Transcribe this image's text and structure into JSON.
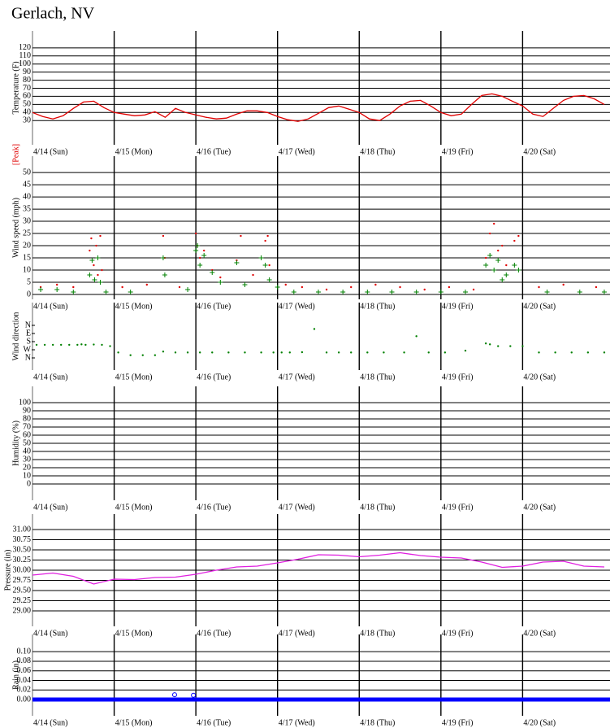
{
  "title": "Gerlach, NV",
  "chart_data": [
    {
      "type": "line",
      "y_label": "Temperature (F)",
      "xlim": [
        0,
        7.07
      ],
      "ylim": [
        0,
        141
      ],
      "xticks": [
        {
          "value": 0,
          "label": "4/14 (Sun)"
        },
        {
          "value": 1,
          "label": "4/15 (Mon)"
        },
        {
          "value": 2,
          "label": "4/16 (Tue)"
        },
        {
          "value": 3,
          "label": "4/17 (Wed)"
        },
        {
          "value": 4,
          "label": "4/18 (Thu)"
        },
        {
          "value": 5,
          "label": "4/19 (Fri)"
        },
        {
          "value": 6,
          "label": "4/20 (Sat)"
        }
      ],
      "yticks": [
        30,
        40,
        50,
        60,
        70,
        80,
        90,
        100,
        110,
        120
      ],
      "series": [
        {
          "color": "#e00000",
          "marker": "line",
          "x": [
            0,
            0.125,
            0.25,
            0.375,
            0.5,
            0.625,
            0.75,
            0.875,
            1,
            1.125,
            1.25,
            1.375,
            1.5,
            1.625,
            1.75,
            1.875,
            2,
            2.125,
            2.25,
            2.375,
            2.5,
            2.625,
            2.75,
            2.875,
            3,
            3.125,
            3.25,
            3.375,
            3.5,
            3.625,
            3.75,
            3.875,
            4,
            4.125,
            4.25,
            4.375,
            4.5,
            4.625,
            4.75,
            4.875,
            5,
            5.125,
            5.25,
            5.375,
            5.5,
            5.625,
            5.75,
            5.875,
            6,
            6.125,
            6.25,
            6.375,
            6.5,
            6.625,
            6.75,
            6.875,
            7
          ],
          "values": [
            40,
            35,
            32,
            36,
            45,
            53,
            54,
            46,
            40,
            38,
            36,
            37,
            41,
            34,
            45,
            40,
            37,
            34,
            32,
            33,
            38,
            42,
            42,
            40,
            35,
            31,
            29,
            32,
            39,
            46,
            48,
            44,
            40,
            32,
            30,
            38,
            48,
            54,
            55,
            48,
            40,
            36,
            38,
            50,
            61,
            63,
            60,
            54,
            48,
            38,
            35,
            45,
            55,
            60,
            61,
            57,
            50
          ]
        }
      ]
    },
    {
      "type": "scatter",
      "y_label": "Wind speed (mph)",
      "xlim": [
        0,
        7.07
      ],
      "ylim": [
        -2,
        56.7
      ],
      "xticks": [
        {
          "value": 0,
          "label": "4/14 (Sun)"
        },
        {
          "value": 1,
          "label": "4/15 (Mon)"
        },
        {
          "value": 2,
          "label": "4/16 (Tue)"
        },
        {
          "value": 3,
          "label": "4/17 (Wed)"
        },
        {
          "value": 4,
          "label": "4/18 (Thu)"
        },
        {
          "value": 5,
          "label": "4/19 (Fri)"
        },
        {
          "value": 6,
          "label": "4/20 (Sat)"
        }
      ],
      "yticks": [
        0,
        5,
        10,
        15,
        20,
        25,
        30,
        35,
        40,
        45,
        50
      ],
      "series": [
        {
          "name": "[Peak]",
          "color": "#e00000",
          "marker": "dot",
          "x": [
            0.1,
            0.3,
            0.5,
            0.7,
            0.72,
            0.75,
            0.78,
            0.8,
            0.83,
            0.85,
            1.1,
            1.4,
            1.6,
            1.62,
            1.8,
            2.0,
            2.02,
            2.05,
            2.1,
            2.2,
            2.3,
            2.5,
            2.55,
            2.7,
            2.85,
            2.88,
            2.9,
            3.1,
            3.3,
            3.6,
            3.9,
            4.2,
            4.5,
            4.8,
            5.1,
            5.4,
            5.55,
            5.6,
            5.65,
            5.7,
            5.75,
            5.8,
            5.9,
            5.95,
            6.2,
            6.5,
            6.9
          ],
          "values": [
            3,
            4,
            3,
            18,
            23,
            12,
            20,
            8,
            24,
            10,
            3,
            4,
            24,
            15,
            3,
            25,
            20,
            15,
            18,
            10,
            7,
            14,
            24,
            8,
            22,
            24,
            12,
            4,
            3,
            2,
            3,
            4,
            3,
            2,
            3,
            2,
            15,
            25,
            29,
            18,
            20,
            12,
            22,
            24,
            3,
            4,
            3
          ]
        },
        {
          "color": "#008000",
          "marker": "plus",
          "x": [
            0.1,
            0.3,
            0.5,
            0.7,
            0.73,
            0.76,
            0.8,
            0.83,
            0.9,
            1.2,
            1.6,
            1.62,
            1.9,
            2.0,
            2.02,
            2.05,
            2.1,
            2.2,
            2.3,
            2.5,
            2.6,
            2.8,
            2.85,
            2.9,
            3.0,
            3.2,
            3.5,
            3.8,
            4.1,
            4.4,
            4.7,
            5.0,
            5.3,
            5.55,
            5.6,
            5.65,
            5.7,
            5.75,
            5.8,
            5.9,
            5.95,
            6.3,
            6.7,
            7.0
          ],
          "values": [
            2,
            2,
            1,
            8,
            14,
            6,
            15,
            5,
            1,
            1,
            15,
            8,
            2,
            18,
            20,
            12,
            16,
            9,
            5,
            13,
            4,
            15,
            12,
            6,
            3,
            1,
            1,
            1,
            1,
            1,
            1,
            1,
            1,
            12,
            16,
            10,
            14,
            6,
            8,
            12,
            10,
            1,
            1,
            1
          ]
        }
      ]
    },
    {
      "type": "scatter",
      "y_label": "Wind direction",
      "xlim": [
        0,
        7.07
      ],
      "ylim": [
        495,
        -252
      ],
      "xticks": [
        {
          "value": 0,
          "label": "4/14 (Sun)"
        },
        {
          "value": 1,
          "label": "4/15 (Mon)"
        },
        {
          "value": 2,
          "label": "4/16 (Tue)"
        },
        {
          "value": 3,
          "label": "4/17 (Wed)"
        },
        {
          "value": 4,
          "label": "4/18 (Thu)"
        },
        {
          "value": 5,
          "label": "4/19 (Fri)"
        },
        {
          "value": 6,
          "label": "4/20 (Sat)"
        }
      ],
      "yticks": [
        {
          "value": 0,
          "label": "N"
        },
        {
          "value": 90,
          "label": "E"
        },
        {
          "value": 180,
          "label": "S"
        },
        {
          "value": 270,
          "label": "W"
        },
        {
          "value": 360,
          "label": "N"
        }
      ],
      "grid": false,
      "series": [
        {
          "color": "#008000",
          "marker": "dot",
          "x": [
            0.05,
            0.15,
            0.25,
            0.35,
            0.45,
            0.55,
            0.6,
            0.65,
            0.75,
            0.85,
            0.95,
            1.05,
            1.2,
            1.35,
            1.5,
            1.6,
            1.75,
            1.9,
            2.05,
            2.2,
            2.4,
            2.6,
            2.8,
            2.95,
            3.05,
            3.15,
            3.3,
            3.45,
            3.6,
            3.75,
            3.9,
            4.1,
            4.3,
            4.55,
            4.7,
            4.85,
            5.05,
            5.3,
            5.55,
            5.6,
            5.7,
            5.85,
            6.0,
            6.2,
            6.4,
            6.6,
            6.8,
            7.0
          ],
          "values": [
            215,
            215,
            215,
            215,
            215,
            215,
            210,
            215,
            212,
            215,
            230,
            300,
            330,
            330,
            330,
            290,
            300,
            300,
            300,
            300,
            300,
            300,
            300,
            300,
            300,
            300,
            297,
            40,
            300,
            300,
            300,
            300,
            300,
            300,
            120,
            300,
            300,
            280,
            200,
            210,
            230,
            230,
            230,
            300,
            300,
            300,
            300,
            300
          ]
        }
      ]
    },
    {
      "type": "scatter",
      "y_label": "Humidity (%)",
      "xlim": [
        0,
        7.07
      ],
      "ylim": [
        -20,
        120
      ],
      "xticks": [
        {
          "value": 0,
          "label": "4/14 (Sun)"
        },
        {
          "value": 1,
          "label": "4/15 (Mon)"
        },
        {
          "value": 2,
          "label": "4/16 (Tue)"
        },
        {
          "value": 3,
          "label": "4/17 (Wed)"
        },
        {
          "value": 4,
          "label": "4/18 (Thu)"
        },
        {
          "value": 5,
          "label": "4/19 (Fri)"
        },
        {
          "value": 6,
          "label": "4/20 (Sat)"
        }
      ],
      "yticks": [
        0,
        10,
        20,
        30,
        40,
        50,
        60,
        70,
        80,
        90,
        100
      ]
    },
    {
      "type": "line",
      "y_label": "Pressure (in)",
      "xlim": [
        0,
        7.07
      ],
      "ylim": [
        28.62,
        31.38
      ],
      "xticks": [
        {
          "value": 0,
          "label": "4/14 (Sun)"
        },
        {
          "value": 1,
          "label": "4/15 (Mon)"
        },
        {
          "value": 2,
          "label": "4/16 (Tue)"
        },
        {
          "value": 3,
          "label": "4/17 (Wed)"
        },
        {
          "value": 4,
          "label": "4/18 (Thu)"
        },
        {
          "value": 5,
          "label": "4/19 (Fri)"
        },
        {
          "value": 6,
          "label": "4/20 (Sat)"
        }
      ],
      "yticks": [
        {
          "value": 29,
          "label": "29.00"
        },
        {
          "value": 29.25,
          "label": "29.25"
        },
        {
          "value": 29.5,
          "label": "29.50"
        },
        {
          "value": 29.75,
          "label": "29.75"
        },
        {
          "value": 30,
          "label": "30.00"
        },
        {
          "value": 30.25,
          "label": "30.25"
        },
        {
          "value": 30.5,
          "label": "30.50"
        },
        {
          "value": 30.75,
          "label": "30.75"
        },
        {
          "value": 31,
          "label": "31.00"
        }
      ],
      "series": [
        {
          "color": "#e020e0",
          "marker": "line",
          "x": [
            0,
            0.25,
            0.5,
            0.75,
            1,
            1.25,
            1.5,
            1.75,
            2,
            2.25,
            2.5,
            2.75,
            3,
            3.25,
            3.5,
            3.75,
            4,
            4.25,
            4.5,
            4.75,
            5,
            5.25,
            5.5,
            5.75,
            6,
            6.25,
            6.5,
            6.75,
            7
          ],
          "values": [
            29.88,
            29.93,
            29.85,
            29.66,
            29.78,
            29.77,
            29.82,
            29.83,
            29.9,
            30.0,
            30.08,
            30.1,
            30.18,
            30.27,
            30.38,
            30.37,
            30.33,
            30.37,
            30.43,
            30.36,
            30.32,
            30.3,
            30.2,
            30.07,
            30.1,
            30.2,
            30.22,
            30.1,
            30.08
          ]
        }
      ]
    },
    {
      "type": "line",
      "y_label": "Rain (in)",
      "xlim": [
        0,
        7.07
      ],
      "ylim": [
        -0.034,
        0.136
      ],
      "xticks": [
        {
          "value": 0,
          "label": "4/14 (Sun)"
        },
        {
          "value": 1,
          "label": "4/15 (Mon)"
        },
        {
          "value": 2,
          "label": "4/16 (Tue)"
        },
        {
          "value": 3,
          "label": "4/17 (Wed)"
        },
        {
          "value": 4,
          "label": "4/18 (Thu)"
        },
        {
          "value": 5,
          "label": "4/19 (Fri)"
        },
        {
          "value": 6,
          "label": "4/20 (Sat)"
        }
      ],
      "yticks": [
        {
          "value": 0,
          "label": "0.00"
        },
        {
          "value": 0.02,
          "label": "0.02"
        },
        {
          "value": 0.04,
          "label": "0.04"
        },
        {
          "value": 0.06,
          "label": "0.06"
        },
        {
          "value": 0.08,
          "label": "0.08"
        },
        {
          "value": 0.1,
          "label": "0.10"
        }
      ],
      "series": [
        {
          "color": "#0000ff",
          "marker": "line",
          "line_width": 5,
          "x": [
            0,
            7.07
          ],
          "values": [
            0,
            0
          ]
        },
        {
          "color": "#0000ff",
          "marker": "circle",
          "x": [
            1.74,
            1.97
          ],
          "values": [
            0.01,
            0.009
          ]
        }
      ]
    }
  ]
}
